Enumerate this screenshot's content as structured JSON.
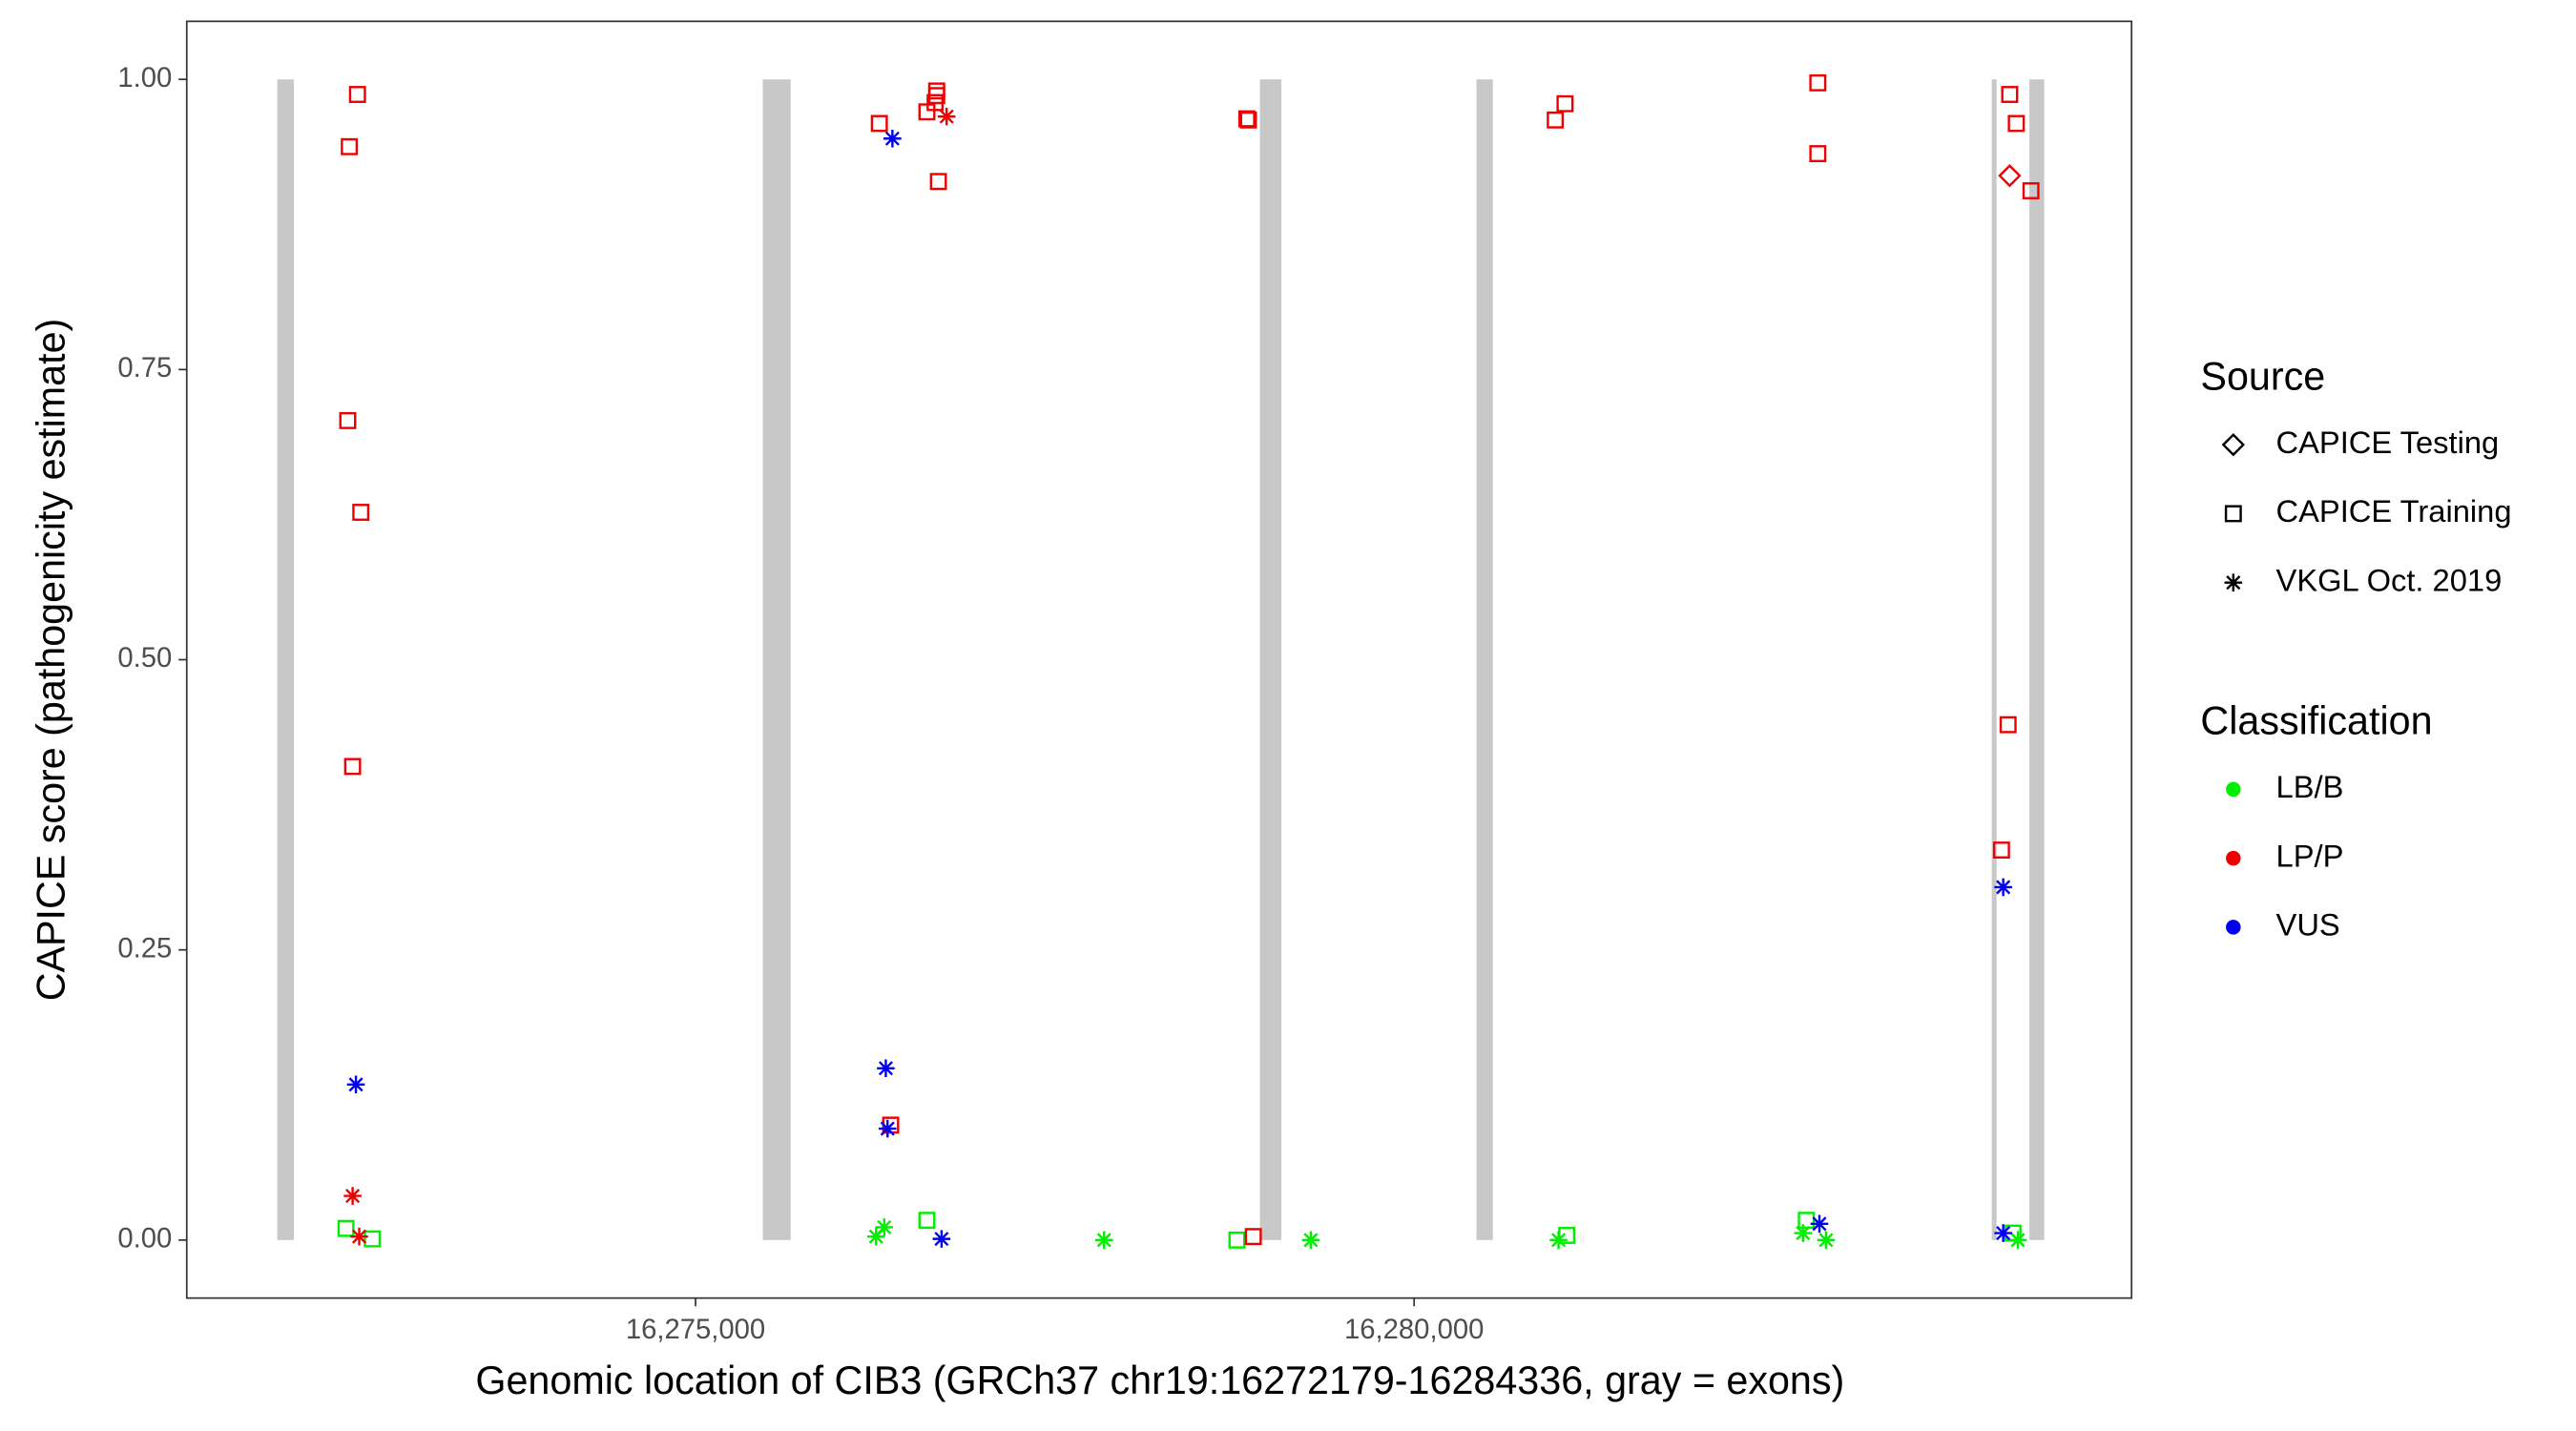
{
  "chart_data": {
    "type": "scatter",
    "x_label": "Genomic location of CIB3 (GRCh37 chr19:16272179-16284336, gray = exons)",
    "y_label": "CAPICE score (pathogenicity estimate)",
    "xlim": [
      16271460,
      16284992
    ],
    "ylim": [
      -0.05,
      1.05
    ],
    "xticks": [
      {
        "value": 16275000,
        "label": "16,275,000"
      },
      {
        "value": 16280000,
        "label": "16,280,000"
      }
    ],
    "yticks": [
      {
        "value": 0,
        "label": "0.00"
      },
      {
        "value": 0.25,
        "label": "0.25"
      },
      {
        "value": 0.5,
        "label": "0.50"
      },
      {
        "value": 0.75,
        "label": "0.75"
      },
      {
        "value": 1,
        "label": "1.00"
      }
    ],
    "exon_color": "#c8c8c8",
    "exons": [
      [
        16272090,
        16272205
      ],
      [
        16275468,
        16275662
      ],
      [
        16278927,
        16279076
      ],
      [
        16280434,
        16280548
      ],
      [
        16284019,
        16284053
      ],
      [
        16284281,
        16284384
      ]
    ],
    "shape_legend_title": "Source",
    "shapes": [
      {
        "name": "CAPICE Testing",
        "shape": "diamond"
      },
      {
        "name": "CAPICE Training",
        "shape": "square"
      },
      {
        "name": "VKGL Oct. 2019",
        "shape": "asterisk"
      }
    ],
    "color_legend_title": "Classification",
    "series": [
      {
        "name": "LB/B",
        "color": "#00ee00",
        "x": [
          16272568,
          16272751,
          16276610,
          16276313,
          16276256,
          16277843,
          16278767,
          16279281,
          16281005,
          16281062,
          16282729,
          16282706,
          16282866,
          16284167,
          16284201
        ],
        "values": [
          0.01,
          0.001,
          0.017,
          0.011,
          0.003,
          0.0,
          0.0,
          0.0,
          0.0,
          0.004,
          0.017,
          0.006,
          0.0,
          0.006,
          0.0
        ],
        "sources": [
          "CAPICE Training",
          "CAPICE Training",
          "CAPICE Training",
          "VKGL Oct. 2019",
          "VKGL Oct. 2019",
          "VKGL Oct. 2019",
          "CAPICE Training",
          "VKGL Oct. 2019",
          "VKGL Oct. 2019",
          "CAPICE Training",
          "CAPICE Training",
          "VKGL Oct. 2019",
          "VKGL Oct. 2019",
          "CAPICE Training",
          "VKGL Oct. 2019"
        ]
      },
      {
        "name": "LP/P",
        "color": "#ee0000",
        "x": [
          16272648,
          16272591,
          16272580,
          16272671,
          16272614,
          16272614,
          16272660,
          16276279,
          16276610,
          16276678,
          16276678,
          16276667,
          16276747,
          16276690,
          16276358,
          16278836,
          16278847,
          16278881,
          16280982,
          16281050,
          16282809,
          16282809,
          16284144,
          16284190,
          16284144,
          16284292,
          16284133,
          16284087
        ],
        "values": [
          0.987,
          0.942,
          0.706,
          0.627,
          0.408,
          0.038,
          0.003,
          0.962,
          0.972,
          0.99,
          0.986,
          0.98,
          0.968,
          0.912,
          0.099,
          0.966,
          0.965,
          0.003,
          0.965,
          0.979,
          0.997,
          0.936,
          0.987,
          0.962,
          0.917,
          0.904,
          0.444,
          0.336
        ],
        "sources": [
          "CAPICE Training",
          "CAPICE Training",
          "CAPICE Training",
          "CAPICE Training",
          "CAPICE Training",
          "VKGL Oct. 2019",
          "VKGL Oct. 2019",
          "CAPICE Training",
          "CAPICE Training",
          "CAPICE Training",
          "CAPICE Training",
          "CAPICE Training",
          "VKGL Oct. 2019",
          "CAPICE Training",
          "CAPICE Training",
          "CAPICE Training",
          "CAPICE Training",
          "CAPICE Training",
          "CAPICE Training",
          "CAPICE Training",
          "CAPICE Training",
          "CAPICE Training",
          "CAPICE Training",
          "CAPICE Training",
          "CAPICE Testing",
          "CAPICE Training",
          "CAPICE Training",
          "CAPICE Training"
        ]
      },
      {
        "name": "VUS",
        "color": "#0000ee",
        "x": [
          16272637,
          16276370,
          16276324,
          16276336,
          16276712,
          16282820,
          16284099,
          16284099
        ],
        "values": [
          0.134,
          0.949,
          0.148,
          0.096,
          0.001,
          0.014,
          0.304,
          0.006
        ],
        "sources": [
          "VKGL Oct. 2019",
          "VKGL Oct. 2019",
          "VKGL Oct. 2019",
          "VKGL Oct. 2019",
          "VKGL Oct. 2019",
          "VKGL Oct. 2019",
          "VKGL Oct. 2019",
          "VKGL Oct. 2019"
        ]
      }
    ]
  }
}
